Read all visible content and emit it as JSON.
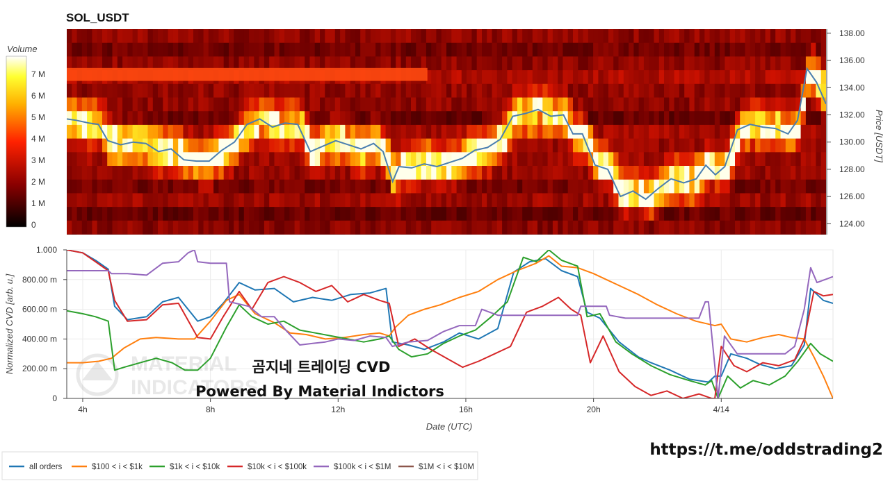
{
  "title": "SOL_USDT",
  "watermark": {
    "line1": "곰지네 트레이딩 CVD",
    "line2": "Powered By Material Indictors",
    "logo_lines": [
      "MATERIAL",
      "INDICATORS"
    ]
  },
  "link": "https://t.me/oddstrading2",
  "colors": {
    "price_line": "#4a7fb0",
    "background": "#ffffff"
  },
  "chart_data": [
    {
      "type": "heatmap",
      "title": "SOL_USDT",
      "ylabel": "Price [USDT]",
      "ylim": [
        123.2,
        138.3
      ],
      "yticks": [
        "138.00",
        "136.00",
        "134.00",
        "132.00",
        "130.00",
        "128.00",
        "126.00",
        "124.00"
      ],
      "colorbar": {
        "label": "Volume",
        "ticks": [
          "7 M",
          "6 M",
          "5 M",
          "4 M",
          "3 M",
          "2 M",
          "1 M",
          "0"
        ],
        "range": [
          0,
          8000000
        ]
      },
      "price_series": {
        "name": "price",
        "x_hours": [
          3.5,
          3.8,
          4.2,
          4.5,
          4.8,
          5.2,
          5.6,
          6.0,
          6.4,
          6.8,
          7.2,
          7.6,
          8.0,
          8.4,
          8.8,
          9.2,
          9.6,
          10.0,
          10.4,
          10.8,
          11.2,
          11.6,
          12.0,
          12.4,
          12.8,
          13.2,
          13.5,
          13.8,
          14.0,
          14.4,
          14.8,
          15.2,
          15.6,
          16.0,
          16.4,
          16.8,
          17.2,
          17.6,
          18.0,
          18.4,
          18.8,
          19.2,
          19.5,
          19.8,
          20.2,
          20.6,
          21.0,
          21.4,
          21.8,
          22.2,
          22.6,
          23.0,
          23.4,
          23.7,
          24.0,
          24.3,
          24.7,
          25.1,
          25.5,
          25.9,
          26.3,
          26.6,
          26.9,
          27.2,
          27.5
        ],
        "y": [
          131.7,
          131.6,
          131.4,
          131.3,
          130.1,
          129.8,
          130.0,
          129.9,
          129.3,
          129.5,
          128.7,
          128.6,
          128.6,
          129.4,
          130.0,
          131.3,
          131.7,
          131.1,
          131.4,
          131.3,
          129.3,
          129.7,
          130.1,
          129.8,
          129.5,
          129.9,
          129.3,
          127.1,
          128.2,
          128.1,
          128.4,
          128.2,
          128.5,
          128.8,
          129.4,
          129.6,
          130.2,
          131.9,
          132.1,
          132.4,
          131.9,
          132.0,
          130.6,
          130.6,
          128.3,
          128.0,
          126.0,
          126.4,
          125.8,
          126.6,
          127.3,
          127.0,
          127.3,
          128.3,
          127.6,
          128.2,
          130.9,
          131.3,
          131.1,
          131.0,
          130.6,
          131.6,
          135.4,
          134.4,
          132.8
        ]
      }
    },
    {
      "type": "line",
      "xlabel": "Date (UTC)",
      "ylabel": "Normalized CVD [arb. u.]",
      "xticks": [
        "4h",
        "8h",
        "12h",
        "16h",
        "20h",
        "4/14"
      ],
      "yticks": [
        "1.000",
        "800.00 m",
        "600.00 m",
        "400.00 m",
        "200.00 m",
        "0"
      ],
      "ylim": [
        0,
        1
      ],
      "series": [
        {
          "name": "all orders",
          "color": "#1f77b4",
          "x": [
            3.5,
            4.0,
            4.4,
            4.8,
            5.0,
            5.4,
            6.0,
            6.5,
            7.0,
            7.6,
            8.0,
            8.4,
            8.9,
            9.4,
            10.0,
            10.6,
            11.2,
            11.8,
            12.4,
            13.0,
            13.5,
            13.7,
            14.2,
            14.7,
            15.3,
            15.8,
            16.4,
            17.0,
            17.5,
            18.0,
            18.5,
            19.0,
            19.5,
            19.8,
            20.2,
            20.8,
            21.4,
            21.8,
            22.4,
            23.0,
            23.6,
            23.8,
            24.0,
            24.3,
            24.8,
            25.2,
            25.7,
            26.2,
            26.6,
            26.8,
            27.2,
            27.5
          ],
          "y": [
            1.0,
            0.98,
            0.93,
            0.87,
            0.62,
            0.53,
            0.55,
            0.65,
            0.68,
            0.52,
            0.55,
            0.64,
            0.78,
            0.73,
            0.74,
            0.65,
            0.68,
            0.66,
            0.7,
            0.71,
            0.74,
            0.38,
            0.36,
            0.33,
            0.38,
            0.44,
            0.4,
            0.47,
            0.85,
            0.92,
            0.94,
            0.86,
            0.82,
            0.58,
            0.54,
            0.38,
            0.28,
            0.24,
            0.19,
            0.13,
            0.11,
            0.15,
            0.15,
            0.3,
            0.27,
            0.23,
            0.2,
            0.22,
            0.36,
            0.74,
            0.66,
            0.64
          ]
        },
        {
          "name": "$100 < i < $1k",
          "color": "#ff7f0e",
          "x": [
            3.5,
            4.0,
            4.5,
            4.9,
            5.3,
            5.8,
            6.3,
            7.0,
            7.5,
            8.0,
            8.5,
            8.9,
            9.4,
            10.0,
            10.5,
            11.0,
            11.6,
            12.2,
            12.8,
            13.3,
            13.6,
            13.8,
            14.2,
            14.7,
            15.2,
            15.8,
            16.4,
            17.0,
            17.6,
            18.2,
            18.6,
            19.0,
            19.5,
            20.0,
            20.4,
            20.8,
            21.4,
            22.0,
            22.6,
            23.2,
            23.8,
            24.0,
            24.3,
            24.8,
            25.3,
            25.8,
            26.2,
            26.6,
            26.9,
            27.2,
            27.5
          ],
          "y": [
            0.24,
            0.24,
            0.25,
            0.27,
            0.34,
            0.4,
            0.41,
            0.4,
            0.4,
            0.52,
            0.66,
            0.7,
            0.57,
            0.51,
            0.44,
            0.43,
            0.4,
            0.41,
            0.43,
            0.44,
            0.42,
            0.48,
            0.56,
            0.6,
            0.63,
            0.68,
            0.72,
            0.8,
            0.86,
            0.91,
            0.96,
            0.89,
            0.88,
            0.84,
            0.8,
            0.76,
            0.7,
            0.63,
            0.57,
            0.52,
            0.49,
            0.5,
            0.4,
            0.38,
            0.41,
            0.43,
            0.41,
            0.4,
            0.28,
            0.15,
            0.0
          ]
        },
        {
          "name": "$1k < i < $10k",
          "color": "#2ca02c",
          "x": [
            3.5,
            4.0,
            4.4,
            4.8,
            5.0,
            5.3,
            5.8,
            6.3,
            6.8,
            7.2,
            7.6,
            8.0,
            8.5,
            8.9,
            9.3,
            9.8,
            10.3,
            10.8,
            11.3,
            11.8,
            12.3,
            12.8,
            13.3,
            13.6,
            13.9,
            14.3,
            14.8,
            15.3,
            15.8,
            16.3,
            16.8,
            17.3,
            17.8,
            18.2,
            18.6,
            19.0,
            19.5,
            19.8,
            20.2,
            20.7,
            21.2,
            21.8,
            22.4,
            23.0,
            23.5,
            23.7,
            23.9,
            24.2,
            24.6,
            25.0,
            25.5,
            26.0,
            26.4,
            26.8,
            27.1,
            27.5
          ],
          "y": [
            0.59,
            0.57,
            0.55,
            0.52,
            0.19,
            0.21,
            0.24,
            0.27,
            0.24,
            0.19,
            0.19,
            0.27,
            0.48,
            0.63,
            0.55,
            0.5,
            0.52,
            0.46,
            0.44,
            0.42,
            0.4,
            0.38,
            0.4,
            0.42,
            0.33,
            0.28,
            0.3,
            0.37,
            0.42,
            0.46,
            0.55,
            0.65,
            0.95,
            0.92,
            1.0,
            0.93,
            0.89,
            0.55,
            0.57,
            0.38,
            0.3,
            0.22,
            0.16,
            0.12,
            0.09,
            0.12,
            0.0,
            0.15,
            0.07,
            0.12,
            0.09,
            0.15,
            0.25,
            0.37,
            0.3,
            0.25
          ]
        },
        {
          "name": "$10k < i < $100k",
          "color": "#d62728",
          "x": [
            3.5,
            4.0,
            4.4,
            4.8,
            5.0,
            5.4,
            6.0,
            6.5,
            7.0,
            7.6,
            8.0,
            8.4,
            8.9,
            9.3,
            9.8,
            10.3,
            10.8,
            11.3,
            11.8,
            12.3,
            12.8,
            13.3,
            13.6,
            13.9,
            14.4,
            14.9,
            15.4,
            15.9,
            16.4,
            16.9,
            17.4,
            17.9,
            18.4,
            18.9,
            19.3,
            19.6,
            19.9,
            20.3,
            20.8,
            21.3,
            21.8,
            22.3,
            22.8,
            23.3,
            23.7,
            23.8,
            24.0,
            24.4,
            24.8,
            25.3,
            25.8,
            26.3,
            26.6,
            26.9,
            27.2,
            27.5
          ],
          "y": [
            1.0,
            0.98,
            0.92,
            0.86,
            0.66,
            0.52,
            0.53,
            0.63,
            0.64,
            0.41,
            0.4,
            0.55,
            0.72,
            0.6,
            0.78,
            0.82,
            0.78,
            0.72,
            0.76,
            0.65,
            0.7,
            0.66,
            0.64,
            0.35,
            0.4,
            0.33,
            0.27,
            0.21,
            0.25,
            0.3,
            0.35,
            0.58,
            0.62,
            0.68,
            0.6,
            0.56,
            0.24,
            0.42,
            0.18,
            0.08,
            0.02,
            0.05,
            0.0,
            0.03,
            0.0,
            0.0,
            0.35,
            0.22,
            0.18,
            0.24,
            0.22,
            0.26,
            0.4,
            0.72,
            0.69,
            0.7
          ]
        },
        {
          "name": "$100k < i < $1M",
          "color": "#9467bd",
          "x": [
            3.5,
            4.0,
            4.4,
            4.8,
            4.9,
            5.4,
            6.0,
            6.5,
            7.0,
            7.3,
            7.5,
            7.6,
            8.0,
            8.5,
            8.6,
            9.2,
            9.6,
            10.0,
            10.4,
            10.8,
            11.2,
            11.6,
            12.0,
            12.5,
            13.0,
            13.5,
            13.7,
            14.2,
            14.8,
            15.3,
            15.8,
            16.3,
            16.5,
            17.0,
            17.5,
            18.0,
            18.5,
            19.0,
            19.5,
            19.6,
            20.4,
            20.5,
            21.0,
            22.0,
            22.6,
            23.3,
            23.5,
            23.6,
            23.9,
            24.1,
            24.5,
            25.0,
            25.5,
            26.0,
            26.3,
            26.6,
            26.8,
            27.0,
            27.5
          ],
          "y": [
            0.86,
            0.86,
            0.86,
            0.86,
            0.84,
            0.84,
            0.83,
            0.91,
            0.92,
            0.98,
            1.0,
            0.92,
            0.91,
            0.91,
            0.65,
            0.62,
            0.55,
            0.55,
            0.45,
            0.36,
            0.37,
            0.38,
            0.4,
            0.39,
            0.42,
            0.41,
            0.35,
            0.38,
            0.39,
            0.45,
            0.49,
            0.49,
            0.6,
            0.56,
            0.56,
            0.56,
            0.56,
            0.56,
            0.56,
            0.62,
            0.62,
            0.56,
            0.54,
            0.54,
            0.54,
            0.54,
            0.65,
            0.65,
            0.0,
            0.42,
            0.3,
            0.3,
            0.3,
            0.3,
            0.35,
            0.6,
            0.88,
            0.78,
            0.82
          ]
        },
        {
          "name": "$1M < i < $10M",
          "color": "#8c564b",
          "x": [],
          "y": []
        }
      ]
    }
  ]
}
